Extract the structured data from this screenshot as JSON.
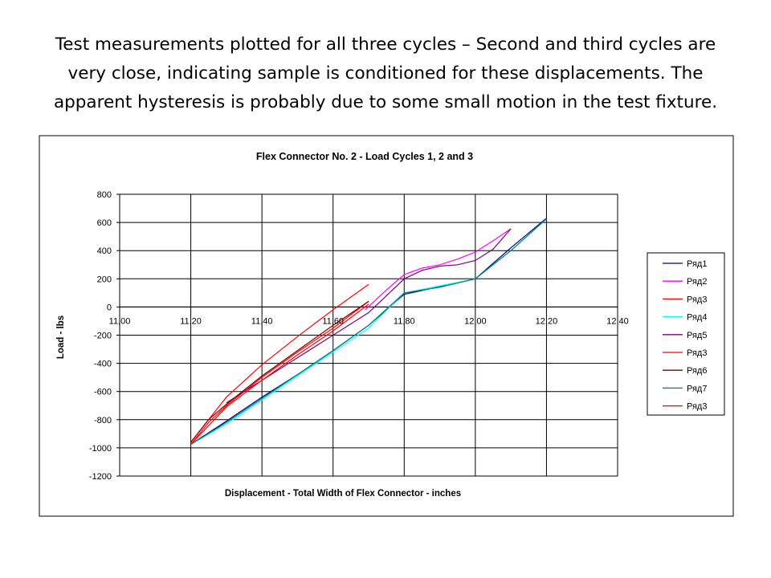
{
  "caption": {
    "line1": "Test measurements plotted for all three cycles – Second and third cycles are",
    "line2": "very close, indicating sample is conditioned for these displacements.  The",
    "line3": "apparent hysteresis is probably due to some small motion in the test fixture."
  },
  "chart_data": {
    "type": "line",
    "title": "Flex Connector No. 2 - Load Cycles 1, 2 and 3",
    "xlabel": "Displacement  -  Total Width of Flex Connector  -  inches",
    "ylabel": "Load  -  lbs",
    "xlim": [
      11.0,
      12.4
    ],
    "ylim": [
      -1200,
      800
    ],
    "x_ticks": [
      "11,00",
      "11,20",
      "11,40",
      "11,60",
      "11,80",
      "12,00",
      "12,20",
      "12,40"
    ],
    "y_ticks": [
      "800",
      "600",
      "400",
      "200",
      "0",
      "-200",
      "-400",
      "-600",
      "-800",
      "-1000",
      "-1200"
    ],
    "grid": true,
    "legend_position": "right",
    "series": [
      {
        "name": "Ряд1",
        "color": "#000080",
        "x": [
          11.2,
          11.3,
          11.4,
          11.5,
          11.6,
          11.7,
          11.8,
          11.9,
          12.0,
          12.1,
          12.2
        ],
        "y": [
          -975,
          -810,
          -640,
          -480,
          -310,
          -130,
          90,
          145,
          200,
          420,
          630
        ]
      },
      {
        "name": "Ряд2",
        "color": "#ff00ff",
        "x": [
          11.69,
          11.75,
          11.8,
          11.85,
          11.9,
          11.95,
          12.0,
          12.05,
          12.1
        ],
        "y": [
          -20,
          120,
          230,
          275,
          300,
          340,
          390,
          470,
          555
        ]
      },
      {
        "name": "Ряд3",
        "color": "#ff0000",
        "x": [
          11.2,
          11.25,
          11.3,
          11.4,
          11.5,
          11.6,
          11.7
        ],
        "y": [
          -975,
          -820,
          -700,
          -500,
          -320,
          -150,
          40
        ]
      },
      {
        "name": "Ряд4",
        "color": "#00ffff",
        "x": [
          11.2,
          11.3,
          11.4,
          11.5,
          11.6,
          11.7,
          11.8,
          11.9,
          12.0,
          12.1,
          12.2
        ],
        "y": [
          -975,
          -830,
          -660,
          -490,
          -320,
          -150,
          100,
          150,
          200,
          400,
          625
        ]
      },
      {
        "name": "Ряд5",
        "color": "#800080",
        "x": [
          11.3,
          11.4,
          11.5,
          11.6,
          11.7,
          11.75,
          11.8,
          11.85,
          11.9,
          11.95,
          12.0,
          12.05,
          12.1
        ],
        "y": [
          -680,
          -520,
          -360,
          -200,
          -40,
          80,
          200,
          260,
          290,
          300,
          330,
          410,
          555
        ]
      },
      {
        "name": "Ряд3",
        "color": "#ff0000",
        "x": [
          11.2,
          11.3,
          11.4,
          11.5,
          11.6,
          11.7
        ],
        "y": [
          -960,
          -640,
          -410,
          -210,
          -20,
          160
        ]
      },
      {
        "name": "Ряд6",
        "color": "#800000",
        "x": [
          11.2,
          11.25,
          11.3,
          11.4,
          11.5,
          11.6,
          11.7
        ],
        "y": [
          -960,
          -800,
          -690,
          -490,
          -310,
          -130,
          40
        ]
      },
      {
        "name": "Ряд7",
        "color": "#008080",
        "x": [
          11.2,
          11.3,
          11.4,
          11.5,
          11.6,
          11.7,
          11.8,
          11.9,
          12.0,
          12.1,
          12.2
        ],
        "y": [
          -975,
          -820,
          -650,
          -480,
          -310,
          -130,
          100,
          140,
          200,
          400,
          625
        ]
      },
      {
        "name": "Ряд3",
        "color": "#ff0000",
        "x": [
          11.2,
          11.3,
          11.4,
          11.5,
          11.6,
          11.7
        ],
        "y": [
          -975,
          -710,
          -520,
          -340,
          -170,
          20
        ]
      }
    ]
  }
}
